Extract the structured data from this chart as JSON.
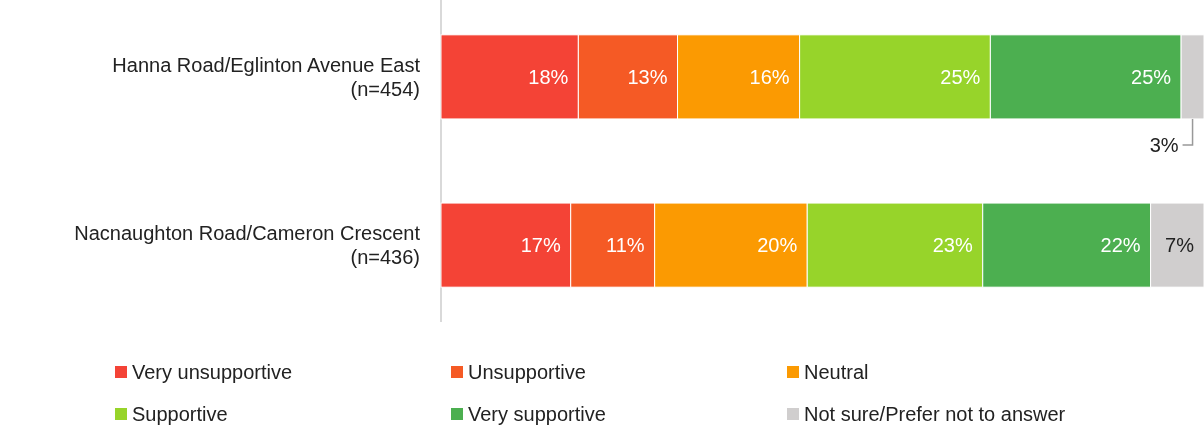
{
  "chart_data": {
    "type": "bar",
    "orientation": "horizontal",
    "stacked": true,
    "categories": [
      "Hanna Road/Eglinton Avenue East\n(n=454)",
      "Nacnaughton Road/Cameron Crescent\n(n=436)"
    ],
    "xlim": [
      0,
      100
    ],
    "legend": "bottom",
    "tick_labels": "y",
    "series": [
      {
        "name": "Very unsupportive",
        "color": "#f44336",
        "values": [
          18,
          17
        ],
        "value_labels": [
          "18%",
          "17%"
        ]
      },
      {
        "name": "Unsupportive",
        "color": "#f55a25",
        "values": [
          13,
          11
        ],
        "value_labels": [
          "13%",
          "11%"
        ]
      },
      {
        "name": "Neutral",
        "color": "#fb9a02",
        "values": [
          16,
          20
        ],
        "value_labels": [
          "16%",
          "20%"
        ]
      },
      {
        "name": "Supportive",
        "color": "#97d42a",
        "values": [
          25,
          23
        ],
        "value_labels": [
          "25%",
          "23%"
        ]
      },
      {
        "name": "Very supportive",
        "color": "#4caf50",
        "values": [
          25,
          22
        ],
        "value_labels": [
          "25%",
          "22%"
        ]
      },
      {
        "name": "Not sure/Prefer not to answer",
        "color": "#d0cece",
        "values": [
          3,
          7
        ],
        "value_labels": [
          "3%",
          "7%"
        ]
      }
    ]
  }
}
